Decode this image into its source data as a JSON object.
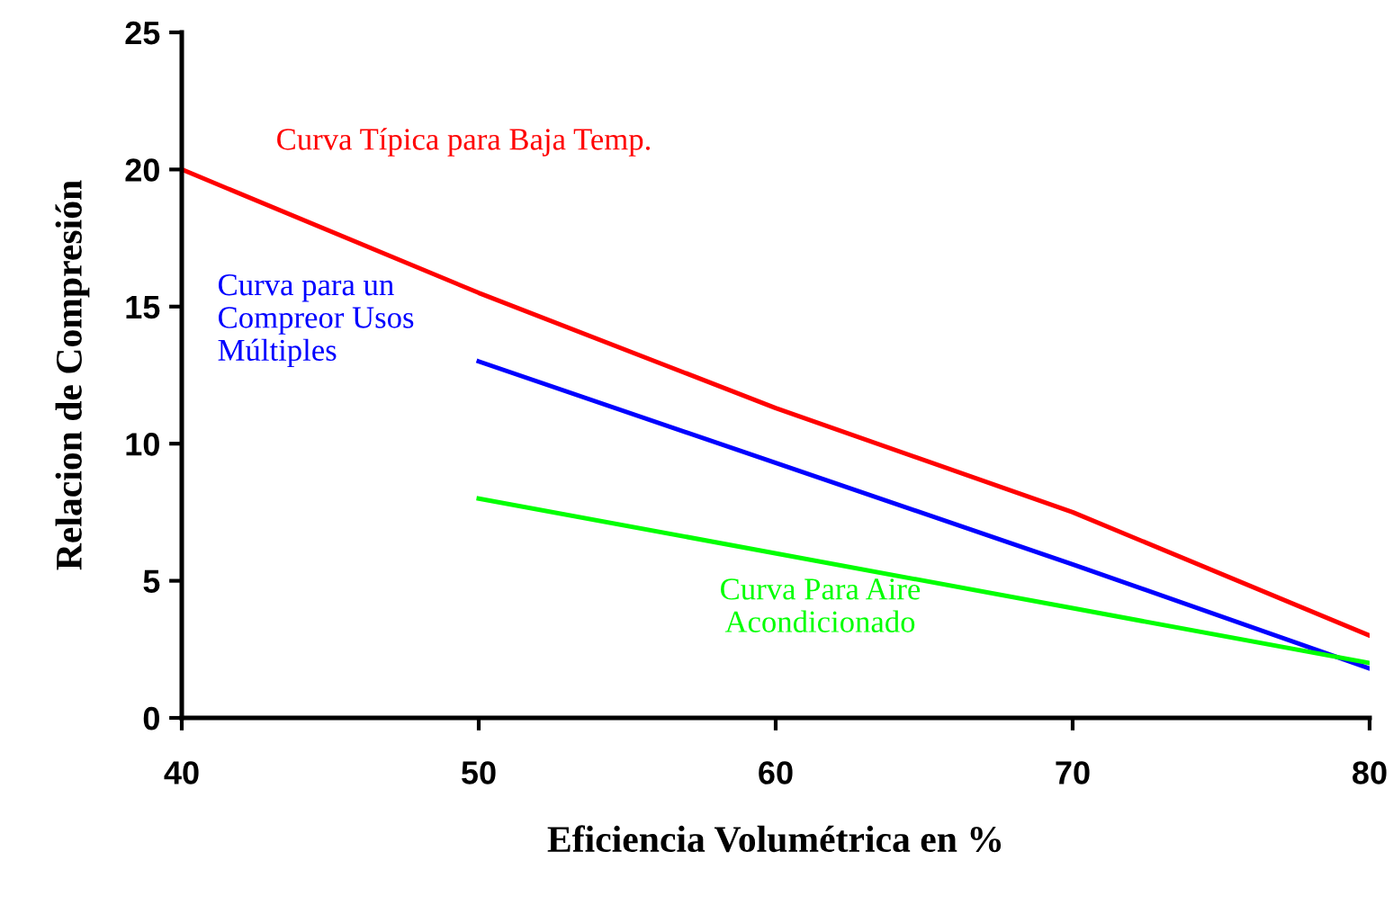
{
  "chart_data": {
    "type": "line",
    "xlabel": "Eficiencia Volumétrica en %",
    "ylabel": "Relacion de Compresión",
    "xlim": [
      40,
      80
    ],
    "xticks": [
      40,
      50,
      60,
      70,
      80
    ],
    "ylim": [
      0,
      25
    ],
    "yticks": [
      0,
      5,
      10,
      15,
      20,
      25
    ],
    "grid": false,
    "legend": false,
    "marker": "none",
    "line_style": "solid",
    "series": [
      {
        "name": "Curva Típica para Baja Temp.",
        "color": "#ff0000",
        "x": [
          40,
          50,
          60,
          70,
          80
        ],
        "values": [
          20,
          15.5,
          11.3,
          7.5,
          3
        ]
      },
      {
        "name": "Curva para un\nCompreor Usos\nMúltiples",
        "color": "#0000ff",
        "x": [
          50,
          70,
          80
        ],
        "values": [
          13,
          5.6,
          1.8
        ]
      },
      {
        "name": "Curva Para Aire\nAcondicionado",
        "color": "#00ff00",
        "x": [
          50,
          70,
          80
        ],
        "values": [
          8,
          4,
          2
        ]
      }
    ]
  }
}
